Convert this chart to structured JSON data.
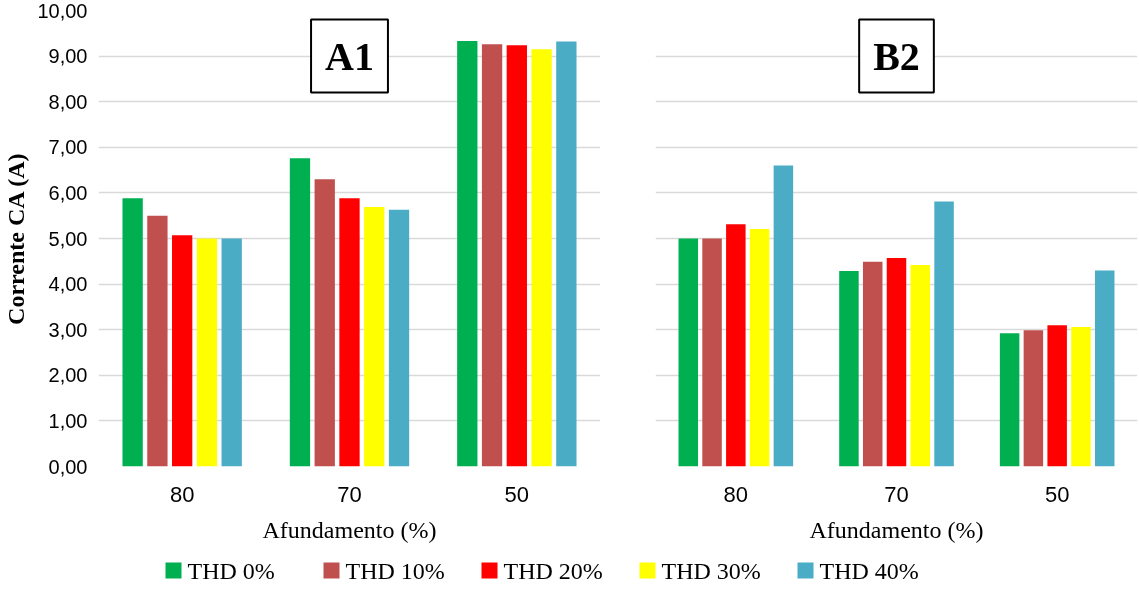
{
  "chart_data": [
    {
      "type": "bar",
      "title": "A1",
      "xlabel": "Afundamento (%)",
      "ylabel": "Corrente CA (A)",
      "categories": [
        "80",
        "70",
        "50"
      ],
      "ylim": [
        0,
        10
      ],
      "yticks": [
        {
          "value": 0,
          "label": "0,00"
        },
        {
          "value": 1,
          "label": "1,00"
        },
        {
          "value": 2,
          "label": "2,00"
        },
        {
          "value": 3,
          "label": "3,00"
        },
        {
          "value": 4,
          "label": "4,00"
        },
        {
          "value": 5,
          "label": "5,00"
        },
        {
          "value": 6,
          "label": "6,00"
        },
        {
          "value": 7,
          "label": "7,00"
        },
        {
          "value": 8,
          "label": "8,00"
        },
        {
          "value": 9,
          "label": "9,00"
        },
        {
          "value": 10,
          "label": "10,00"
        }
      ],
      "grid": "y",
      "legend": "bottom",
      "series": [
        {
          "name": "THD 0%",
          "color": "#00b050",
          "values": [
            5.88,
            6.76,
            9.33
          ]
        },
        {
          "name": "THD 10%",
          "color": "#c0504d",
          "values": [
            5.5,
            6.3,
            9.26
          ]
        },
        {
          "name": "THD 20%",
          "color": "#ff0000",
          "values": [
            5.07,
            5.88,
            9.24
          ]
        },
        {
          "name": "THD 30%",
          "color": "#ffff00",
          "values": [
            5.0,
            5.69,
            9.15
          ]
        },
        {
          "name": "THD 40%",
          "color": "#4bacc6",
          "values": [
            5.0,
            5.63,
            9.32
          ]
        }
      ]
    },
    {
      "type": "bar",
      "title": "B2",
      "xlabel": "Afundamento (%)",
      "categories": [
        "80",
        "70",
        "50"
      ],
      "ylim": [
        0,
        10
      ],
      "yticks": [
        {
          "value": 0,
          "label": null
        },
        {
          "value": 1,
          "label": null
        },
        {
          "value": 2,
          "label": null
        },
        {
          "value": 3,
          "label": null
        },
        {
          "value": 4,
          "label": null
        },
        {
          "value": 5,
          "label": null
        },
        {
          "value": 6,
          "label": null
        },
        {
          "value": 7,
          "label": null
        },
        {
          "value": 8,
          "label": null
        },
        {
          "value": 9,
          "label": null
        },
        {
          "value": 10,
          "label": null
        }
      ],
      "grid": "y",
      "tick_labels": "x",
      "series": [
        {
          "color": "#00b050",
          "values": [
            5.0,
            4.29,
            2.92
          ]
        },
        {
          "color": "#c0504d",
          "values": [
            5.0,
            4.49,
            2.99
          ]
        },
        {
          "color": "#ff0000",
          "values": [
            5.31,
            4.57,
            3.1
          ]
        },
        {
          "color": "#ffff00",
          "values": [
            5.21,
            4.42,
            3.06
          ]
        },
        {
          "color": "#4bacc6",
          "values": [
            6.6,
            5.81,
            4.3
          ]
        }
      ]
    }
  ]
}
